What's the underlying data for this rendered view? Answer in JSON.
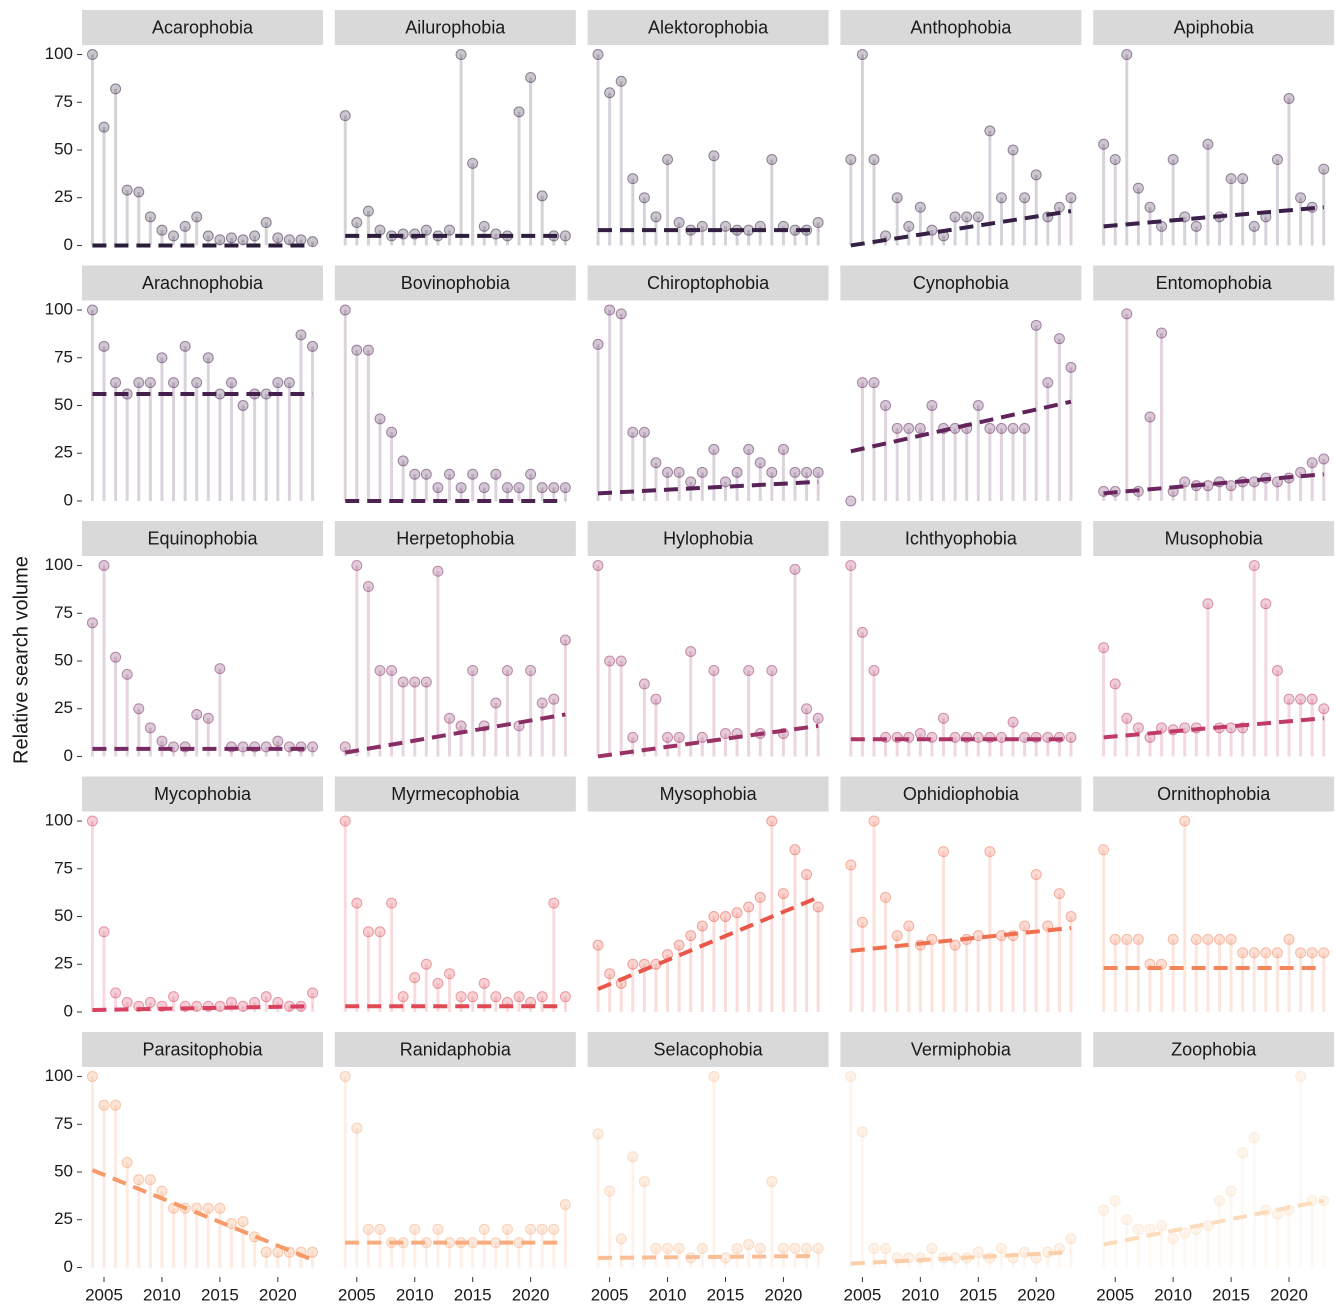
{
  "chart_data": {
    "type": "lollipop",
    "ylabel": "Relative search volume",
    "x": [
      2004,
      2005,
      2006,
      2007,
      2008,
      2009,
      2010,
      2011,
      2012,
      2013,
      2014,
      2015,
      2016,
      2017,
      2018,
      2019,
      2020,
      2021,
      2022,
      2023
    ],
    "xlim": [
      2003.1,
      2023.9
    ],
    "xticks": [
      2005,
      2010,
      2015,
      2020
    ],
    "ylim": [
      -5,
      105
    ],
    "yticks": [
      0,
      25,
      50,
      75,
      100
    ],
    "panels": [
      {
        "title": "Acarophobia",
        "color": "#2b1d3a",
        "values": [
          100,
          62,
          82,
          29,
          28,
          15,
          8,
          5,
          10,
          15,
          5,
          3,
          4,
          3,
          5,
          12,
          4,
          3,
          3,
          2
        ],
        "trend": [
          0,
          0
        ]
      },
      {
        "title": "Ailurophobia",
        "color": "#2e1e3d",
        "values": [
          68,
          12,
          18,
          8,
          5,
          6,
          6,
          8,
          5,
          8,
          100,
          43,
          10,
          6,
          5,
          70,
          88,
          26,
          5,
          5
        ],
        "trend": [
          5,
          5
        ]
      },
      {
        "title": "Alektorophobia",
        "color": "#321f41",
        "values": [
          100,
          80,
          86,
          35,
          25,
          15,
          45,
          12,
          8,
          10,
          47,
          10,
          8,
          8,
          10,
          45,
          10,
          8,
          8,
          12
        ],
        "trend": [
          8,
          8
        ]
      },
      {
        "title": "Anthophobia",
        "color": "#362045",
        "values": [
          45,
          100,
          45,
          5,
          25,
          10,
          20,
          8,
          5,
          15,
          15,
          15,
          60,
          25,
          50,
          25,
          37,
          15,
          20,
          25
        ],
        "trend": [
          0,
          18
        ]
      },
      {
        "title": "Apiphobia",
        "color": "#3b2049",
        "values": [
          53,
          45,
          100,
          30,
          20,
          10,
          45,
          15,
          10,
          53,
          15,
          35,
          35,
          10,
          15,
          45,
          77,
          25,
          20,
          40
        ],
        "trend": [
          10,
          20
        ]
      },
      {
        "title": "Arachnophobia",
        "color": "#45204e",
        "values": [
          100,
          81,
          62,
          56,
          62,
          62,
          75,
          62,
          81,
          62,
          75,
          56,
          62,
          50,
          56,
          56,
          62,
          62,
          87,
          81
        ],
        "trend": [
          56,
          56
        ]
      },
      {
        "title": "Bovinophobia",
        "color": "#4e2153",
        "values": [
          100,
          79,
          79,
          43,
          36,
          21,
          14,
          14,
          7,
          14,
          7,
          14,
          7,
          14,
          7,
          7,
          14,
          7,
          7,
          7
        ],
        "trend": [
          0,
          0
        ]
      },
      {
        "title": "Chiroptophobia",
        "color": "#572257",
        "values": [
          82,
          100,
          98,
          36,
          36,
          20,
          15,
          15,
          10,
          15,
          27,
          10,
          15,
          27,
          20,
          15,
          27,
          15,
          15,
          15
        ],
        "trend": [
          4,
          10
        ]
      },
      {
        "title": "Cynophobia",
        "color": "#60245b",
        "values": [
          0,
          62,
          62,
          50,
          38,
          38,
          38,
          50,
          38,
          38,
          38,
          50,
          38,
          38,
          38,
          38,
          92,
          62,
          85,
          70
        ],
        "trend": [
          26,
          52
        ]
      },
      {
        "title": "Entomophobia",
        "color": "#69265e",
        "values": [
          5,
          5,
          98,
          5,
          44,
          88,
          5,
          10,
          8,
          8,
          10,
          8,
          10,
          10,
          12,
          10,
          12,
          15,
          20,
          22
        ],
        "trend": [
          4,
          14
        ]
      },
      {
        "title": "Equinophobia",
        "color": "#772a62",
        "values": [
          70,
          100,
          52,
          43,
          25,
          15,
          8,
          5,
          5,
          22,
          20,
          46,
          5,
          5,
          5,
          5,
          8,
          5,
          5,
          5
        ],
        "trend": [
          4,
          4
        ]
      },
      {
        "title": "Herpetophobia",
        "color": "#882e64",
        "values": [
          5,
          100,
          89,
          45,
          45,
          39,
          39,
          39,
          97,
          20,
          16,
          45,
          16,
          28,
          45,
          16,
          45,
          28,
          30,
          61
        ],
        "trend": [
          2,
          22
        ]
      },
      {
        "title": "Hylophobia",
        "color": "#9a3266",
        "values": [
          100,
          50,
          50,
          10,
          38,
          30,
          10,
          10,
          55,
          10,
          45,
          12,
          12,
          45,
          12,
          45,
          12,
          98,
          25,
          20
        ],
        "trend": [
          0,
          16
        ]
      },
      {
        "title": "Ichthyophobia",
        "color": "#ad3668",
        "values": [
          100,
          65,
          45,
          10,
          10,
          10,
          12,
          10,
          20,
          10,
          10,
          10,
          10,
          10,
          18,
          10,
          10,
          10,
          10,
          10
        ],
        "trend": [
          9,
          9
        ]
      },
      {
        "title": "Musophobia",
        "color": "#c13a6a",
        "values": [
          57,
          38,
          20,
          15,
          10,
          15,
          14,
          15,
          15,
          80,
          15,
          15,
          15,
          100,
          80,
          45,
          30,
          30,
          30,
          25
        ],
        "trend": [
          10,
          20
        ]
      },
      {
        "title": "Mycophobia",
        "color": "#d8415f",
        "values": [
          100,
          42,
          10,
          5,
          3,
          5,
          3,
          8,
          3,
          3,
          3,
          3,
          5,
          3,
          5,
          8,
          5,
          3,
          3,
          10
        ],
        "trend": [
          1,
          3
        ]
      },
      {
        "title": "Myrmecophobia",
        "color": "#e04a55",
        "values": [
          100,
          57,
          42,
          42,
          57,
          8,
          18,
          25,
          15,
          20,
          8,
          8,
          15,
          8,
          5,
          8,
          5,
          8,
          57,
          8
        ],
        "trend": [
          3,
          3
        ]
      },
      {
        "title": "Mysophobia",
        "color": "#e8574a",
        "values": [
          35,
          20,
          15,
          25,
          25,
          25,
          30,
          35,
          40,
          45,
          50,
          50,
          52,
          55,
          60,
          100,
          62,
          85,
          72,
          55
        ],
        "trend": [
          12,
          60
        ]
      },
      {
        "title": "Ophidiophobia",
        "color": "#ef7050",
        "values": [
          77,
          47,
          100,
          60,
          40,
          45,
          35,
          38,
          84,
          35,
          38,
          40,
          84,
          40,
          40,
          45,
          72,
          45,
          62,
          50
        ],
        "trend": [
          32,
          44
        ]
      },
      {
        "title": "Ornithophobia",
        "color": "#f2855b",
        "values": [
          85,
          38,
          38,
          38,
          25,
          25,
          38,
          100,
          38,
          38,
          38,
          38,
          31,
          31,
          31,
          31,
          38,
          31,
          31,
          31
        ],
        "trend": [
          23,
          23
        ]
      },
      {
        "title": "Parasitophobia",
        "color": "#f59a68",
        "values": [
          100,
          85,
          85,
          55,
          46,
          46,
          40,
          31,
          31,
          31,
          31,
          31,
          23,
          24,
          16,
          8,
          8,
          8,
          8,
          8
        ],
        "trend": [
          51,
          4
        ]
      },
      {
        "title": "Ranidaphobia",
        "color": "#f7ac80",
        "values": [
          100,
          73,
          20,
          20,
          13,
          13,
          20,
          13,
          20,
          13,
          13,
          13,
          20,
          13,
          20,
          13,
          20,
          20,
          20,
          33
        ],
        "trend": [
          13,
          13
        ]
      },
      {
        "title": "Selacophobia",
        "color": "#f9be95",
        "values": [
          70,
          40,
          15,
          58,
          45,
          10,
          10,
          10,
          5,
          10,
          100,
          5,
          10,
          12,
          10,
          45,
          10,
          10,
          10,
          10
        ],
        "trend": [
          5,
          6
        ]
      },
      {
        "title": "Vermiphobia",
        "color": "#fbcfaa",
        "values": [
          100,
          71,
          10,
          10,
          5,
          5,
          5,
          10,
          5,
          5,
          5,
          8,
          5,
          10,
          5,
          8,
          5,
          8,
          10,
          15
        ],
        "trend": [
          2,
          8
        ]
      },
      {
        "title": "Zoophobia",
        "color": "#fcdcbd",
        "values": [
          30,
          35,
          25,
          20,
          20,
          22,
          15,
          18,
          20,
          22,
          35,
          40,
          60,
          68,
          30,
          28,
          30,
          100,
          35,
          35
        ],
        "trend": [
          12,
          35
        ]
      }
    ]
  }
}
